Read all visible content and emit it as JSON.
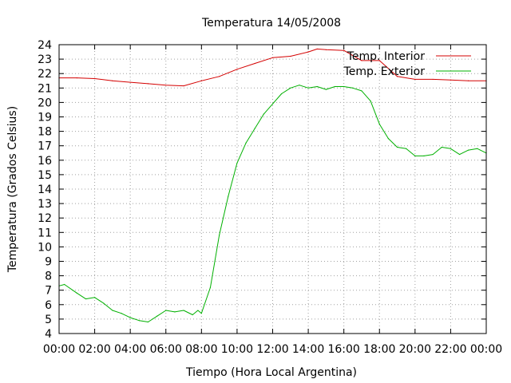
{
  "chart_data": {
    "type": "line",
    "title": "Temperatura 14/05/2008",
    "xlabel": "Tiempo (Hora Local Argentina)",
    "ylabel": "Temperatura (Grados Celsius)",
    "x_ticks": [
      "00:00",
      "02:00",
      "04:00",
      "06:00",
      "08:00",
      "10:00",
      "12:00",
      "14:00",
      "16:00",
      "18:00",
      "20:00",
      "22:00",
      "00:00"
    ],
    "y_ticks": [
      4,
      5,
      6,
      7,
      8,
      9,
      10,
      11,
      12,
      13,
      14,
      15,
      16,
      17,
      18,
      19,
      20,
      21,
      22,
      23,
      24
    ],
    "xlim": [
      0,
      24
    ],
    "ylim": [
      4,
      24
    ],
    "grid": true,
    "legend_position": "top-right",
    "series": [
      {
        "name": "Temp. Interior",
        "color": "#d40000",
        "x": [
          0,
          1,
          2,
          3,
          4,
          5,
          6,
          7,
          8,
          9,
          10,
          11,
          12,
          13,
          14,
          14.5,
          15,
          16,
          17,
          18,
          19,
          20,
          21,
          22,
          23,
          24
        ],
        "y": [
          21.7,
          21.7,
          21.65,
          21.5,
          21.4,
          21.3,
          21.2,
          21.15,
          21.5,
          21.8,
          22.3,
          22.7,
          23.1,
          23.2,
          23.5,
          23.7,
          23.65,
          23.6,
          22.9,
          22.9,
          21.8,
          21.6,
          21.6,
          21.55,
          21.5,
          21.5
        ]
      },
      {
        "name": "Temp. Exterior",
        "color": "#00b000",
        "x": [
          0,
          0.3,
          1,
          1.5,
          2,
          2.5,
          3,
          3.5,
          4,
          4.5,
          5,
          5.5,
          6,
          6.5,
          7,
          7.5,
          7.8,
          8,
          8.5,
          9,
          9.5,
          10,
          10.5,
          11,
          11.5,
          12,
          12.5,
          13,
          13.5,
          14,
          14.5,
          15,
          15.5,
          16,
          16.5,
          17,
          17.5,
          18,
          18.5,
          19,
          19.5,
          20,
          20.5,
          21,
          21.5,
          22,
          22.5,
          23,
          23.5,
          24
        ],
        "y": [
          7.3,
          7.4,
          6.8,
          6.4,
          6.5,
          6.1,
          5.6,
          5.4,
          5.1,
          4.9,
          4.8,
          5.2,
          5.6,
          5.5,
          5.6,
          5.3,
          5.6,
          5.4,
          7.2,
          10.8,
          13.5,
          15.8,
          17.2,
          18.2,
          19.2,
          19.9,
          20.6,
          21.0,
          21.2,
          21.0,
          21.1,
          20.9,
          21.1,
          21.1,
          21.0,
          20.8,
          20.1,
          18.5,
          17.5,
          16.9,
          16.8,
          16.3,
          16.3,
          16.4,
          16.9,
          16.8,
          16.4,
          16.7,
          16.8,
          16.5
        ]
      }
    ]
  }
}
